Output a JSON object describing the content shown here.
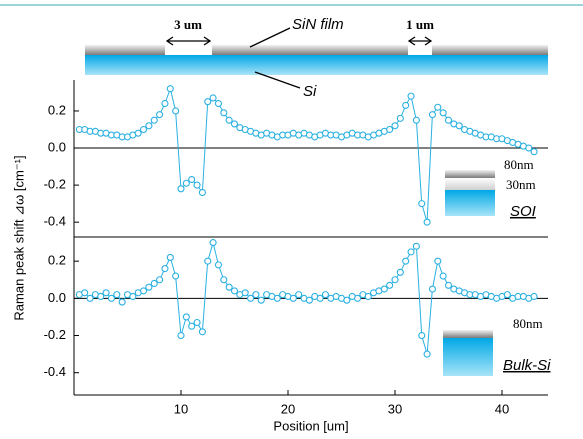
{
  "schematic": {
    "gap_labels": [
      "3 um",
      "1 um"
    ],
    "film": "SiN film",
    "substrate": "Si"
  },
  "chart_data": [
    {
      "type": "scatter-line",
      "ylabel": "Raman peak shift ⊿ω [cm⁻¹]",
      "color": "#2ab0e2",
      "x": [
        0.5,
        1,
        1.5,
        2,
        2.5,
        3,
        3.5,
        4,
        4.5,
        5,
        5.5,
        6,
        6.5,
        7,
        7.5,
        8,
        8.5,
        9,
        9.5,
        10,
        10.5,
        11,
        11.5,
        12,
        12.5,
        13,
        13.5,
        14,
        14.5,
        15,
        15.5,
        16,
        16.5,
        17,
        17.5,
        18,
        18.5,
        19,
        19.5,
        20,
        20.5,
        21,
        21.5,
        22,
        22.5,
        23,
        23.5,
        24,
        24.5,
        25,
        25.5,
        26,
        26.5,
        27,
        27.5,
        28,
        28.5,
        29,
        29.5,
        30,
        30.5,
        31,
        31.5,
        32,
        32.5,
        33,
        33.5,
        34,
        34.5,
        35,
        35.5,
        36,
        36.5,
        37,
        37.5,
        38,
        38.5,
        39,
        39.5,
        40,
        40.5,
        41,
        41.5,
        42,
        42.5,
        43
      ],
      "values": [
        0.1,
        0.1,
        0.09,
        0.09,
        0.08,
        0.08,
        0.07,
        0.07,
        0.06,
        0.06,
        0.07,
        0.08,
        0.1,
        0.12,
        0.15,
        0.18,
        0.24,
        0.32,
        0.2,
        -0.22,
        -0.19,
        -0.17,
        -0.2,
        -0.24,
        0.25,
        0.27,
        0.24,
        0.19,
        0.15,
        0.13,
        0.11,
        0.1,
        0.09,
        0.08,
        0.07,
        0.08,
        0.07,
        0.06,
        0.07,
        0.07,
        0.08,
        0.07,
        0.08,
        0.07,
        0.06,
        0.07,
        0.08,
        0.07,
        0.07,
        0.06,
        0.07,
        0.08,
        0.07,
        0.07,
        0.06,
        0.07,
        0.08,
        0.09,
        0.1,
        0.12,
        0.16,
        0.23,
        0.28,
        0.15,
        -0.3,
        -0.4,
        0.18,
        0.22,
        0.19,
        0.15,
        0.13,
        0.12,
        0.1,
        0.09,
        0.08,
        0.07,
        0.06,
        0.06,
        0.05,
        0.05,
        0.04,
        0.03,
        0.02,
        0.01,
        0.0,
        -0.02
      ],
      "xlim": [
        0,
        44.3
      ],
      "ylim": [
        -0.48,
        0.367
      ],
      "yticks": [
        -0.4,
        -0.2,
        {
          "value": 0,
          "label": "0.0"
        },
        0.2
      ],
      "inset": {
        "layers": [
          "80nm",
          "30nm"
        ],
        "name": "SOI"
      }
    },
    {
      "type": "scatter-line",
      "xlabel": "Position [um]",
      "color": "#2ab0e2",
      "x": [
        0.5,
        1,
        1.5,
        2,
        2.5,
        3,
        3.5,
        4,
        4.5,
        5,
        5.5,
        6,
        6.5,
        7,
        7.5,
        8,
        8.5,
        9,
        9.5,
        10,
        10.5,
        11,
        11.5,
        12,
        12.5,
        13,
        13.5,
        14,
        14.5,
        15,
        15.5,
        16,
        16.5,
        17,
        17.5,
        18,
        18.5,
        19,
        19.5,
        20,
        20.5,
        21,
        21.5,
        22,
        22.5,
        23,
        23.5,
        24,
        24.5,
        25,
        25.5,
        26,
        26.5,
        27,
        27.5,
        28,
        28.5,
        29,
        29.5,
        30,
        30.5,
        31,
        31.5,
        32,
        32.5,
        33,
        33.5,
        34,
        34.5,
        35,
        35.5,
        36,
        36.5,
        37,
        37.5,
        38,
        38.5,
        39,
        39.5,
        40,
        40.5,
        41,
        41.5,
        42,
        42.5,
        43
      ],
      "values": [
        0.02,
        0.03,
        0.0,
        0.02,
        0.01,
        0.03,
        0.0,
        0.02,
        -0.02,
        0.02,
        0.01,
        0.03,
        0.04,
        0.06,
        0.08,
        0.1,
        0.16,
        0.22,
        0.12,
        -0.2,
        -0.1,
        -0.15,
        -0.13,
        -0.18,
        0.2,
        0.3,
        0.18,
        0.1,
        0.06,
        0.04,
        0.02,
        0.03,
        0.0,
        0.02,
        -0.01,
        0.02,
        0.01,
        0.0,
        0.02,
        0.01,
        0.0,
        0.02,
        0.0,
        -0.01,
        0.01,
        0.0,
        0.02,
        0.0,
        0.01,
        0.0,
        -0.01,
        0.01,
        0.0,
        0.02,
        0.01,
        0.03,
        0.04,
        0.05,
        0.07,
        0.1,
        0.14,
        0.2,
        0.25,
        0.28,
        -0.2,
        -0.3,
        0.05,
        0.2,
        0.12,
        0.07,
        0.05,
        0.04,
        0.03,
        0.02,
        0.02,
        0.01,
        0.02,
        0.01,
        0.0,
        0.01,
        0.02,
        0.0,
        0.01,
        0.01,
        0.0,
        0.01
      ],
      "xlim": [
        0,
        44.3
      ],
      "ylim": [
        -0.52,
        0.33
      ],
      "yticks": [
        -0.4,
        -0.2,
        {
          "value": 0,
          "label": "0.0"
        },
        0.2
      ],
      "xticks": [
        10,
        20,
        30,
        40
      ],
      "inset": {
        "layers": [
          "80nm"
        ],
        "name": "Bulk-Si"
      }
    }
  ]
}
